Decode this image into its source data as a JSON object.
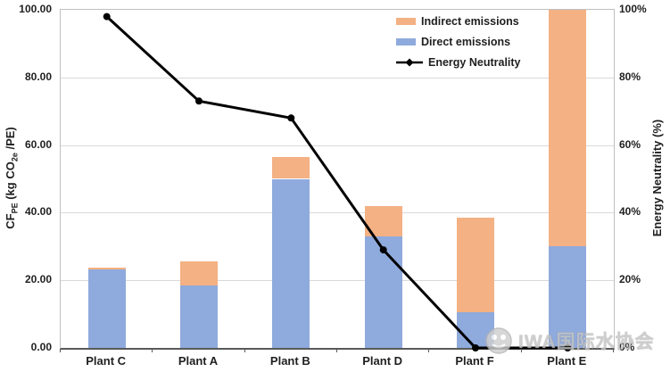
{
  "chart_data": {
    "type": "bar",
    "subtype": "stacked-column-with-line-combo",
    "categories": [
      "Plant C",
      "Plant A",
      "Plant B",
      "Plant D",
      "Plant F",
      "Plant E"
    ],
    "series": [
      {
        "name": "Direct emissions",
        "chart_type": "bar",
        "stack": "emissions",
        "axis": "left",
        "color": "#8FAADC",
        "values": [
          23.2,
          18.5,
          50,
          33,
          10.5,
          30
        ]
      },
      {
        "name": "Indirect emissions",
        "chart_type": "bar",
        "stack": "emissions",
        "axis": "left",
        "color": "#F4B183",
        "values": [
          0.5,
          7,
          6.5,
          9,
          28,
          70
        ]
      },
      {
        "name": "Energy Neutrality",
        "chart_type": "line",
        "marker": "diamond",
        "axis": "right",
        "color": "#000000",
        "values": [
          98,
          73,
          68,
          29,
          0,
          0
        ]
      }
    ],
    "left_axis": {
      "title_plain": "CFPE (kg CO2e /PE)",
      "title_parts": {
        "p1": "CF",
        "sub1": "PE",
        "p2": " (kg CO",
        "sub2": "2e",
        "p3": " /PE)"
      },
      "ticks": [
        "0.00",
        "20.00",
        "40.00",
        "60.00",
        "80.00",
        "100.00"
      ],
      "range": [
        0,
        100
      ]
    },
    "right_axis": {
      "title": "Energy Neutrality (%)",
      "ticks": [
        "0%",
        "20%",
        "40%",
        "60%",
        "80%",
        "100%"
      ],
      "range": [
        0,
        100
      ]
    },
    "legend": {
      "position": "top-right",
      "items": [
        {
          "label": "Indirect emissions",
          "swatch": "rect",
          "color": "#F4B183"
        },
        {
          "label": "Direct emissions",
          "swatch": "rect",
          "color": "#8FAADC"
        },
        {
          "label": "Energy Neutrality",
          "swatch": "line-marker",
          "color": "#000000"
        }
      ]
    },
    "grid": true,
    "gridline_color": "#D9D9D9",
    "plant_e_bar": "truncated at axis maximum (100.00)"
  },
  "watermark": {
    "text": "IWA国际水协会"
  }
}
